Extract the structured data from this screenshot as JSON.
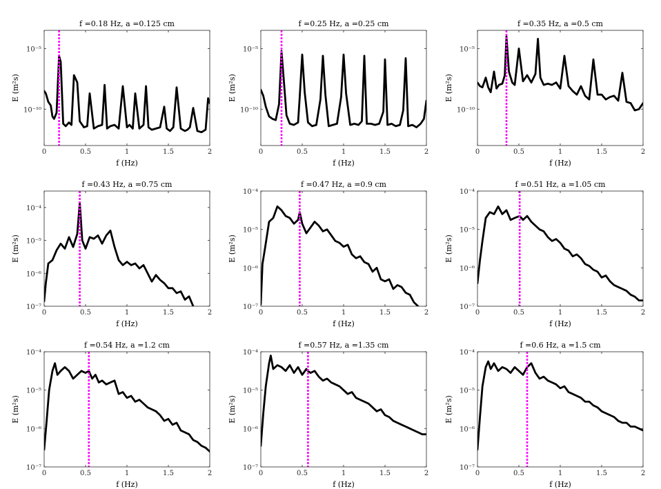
{
  "figure": {
    "description_color_line": "#000000",
    "marker_color": "#ff00ff"
  },
  "chart_data": [
    {
      "type": "line",
      "title": "f =0.18 Hz, a =0.125 cm",
      "xlabel": "f (Hz)",
      "ylabel": "E (m²s)",
      "xlim": [
        0,
        2
      ],
      "ylim_exp": [
        -13,
        -3.5
      ],
      "xticks": [
        "0",
        "0.5",
        "1",
        "1.5",
        "2"
      ],
      "yticks": [
        {
          "label": "10⁻⁵",
          "exp": -5
        },
        {
          "label": "10⁻¹⁰",
          "exp": -10
        }
      ],
      "marker_freq": 0.18,
      "x": [
        0,
        0.02,
        0.05,
        0.08,
        0.1,
        0.12,
        0.15,
        0.18,
        0.2,
        0.23,
        0.26,
        0.3,
        0.33,
        0.36,
        0.4,
        0.43,
        0.48,
        0.52,
        0.55,
        0.6,
        0.65,
        0.7,
        0.73,
        0.76,
        0.8,
        0.85,
        0.9,
        0.95,
        1.0,
        1.03,
        1.07,
        1.1,
        1.15,
        1.2,
        1.23,
        1.26,
        1.3,
        1.35,
        1.4,
        1.45,
        1.48,
        1.52,
        1.56,
        1.6,
        1.65,
        1.7,
        1.73,
        1.76,
        1.8,
        1.85,
        1.9,
        1.95,
        1.98,
        2.0
      ],
      "exp": [
        -8.5,
        -8.7,
        -9.4,
        -9.7,
        -10.6,
        -10.8,
        -10.3,
        -5.6,
        -6.1,
        -11.2,
        -11.4,
        -11.1,
        -11.3,
        -7.2,
        -7.8,
        -11.0,
        -11.5,
        -11.4,
        -8.7,
        -11.6,
        -11.4,
        -11.3,
        -8.0,
        -11.6,
        -11.4,
        -11.3,
        -11.6,
        -8.1,
        -11.5,
        -11.3,
        -11.6,
        -8.7,
        -11.6,
        -11.3,
        -8.1,
        -11.5,
        -11.7,
        -11.6,
        -11.5,
        -9.8,
        -11.6,
        -11.8,
        -11.5,
        -8.2,
        -11.6,
        -11.8,
        -11.7,
        -11.5,
        -9.9,
        -11.8,
        -11.9,
        -11.7,
        -9.1,
        -9.5
      ]
    },
    {
      "type": "line",
      "title": "f =0.25 Hz, a =0.25 cm",
      "xlabel": "f (Hz)",
      "ylabel": "E (m²s)",
      "xlim": [
        0,
        2
      ],
      "ylim_exp": [
        -13,
        -3.5
      ],
      "xticks": [
        "0",
        "0.5",
        "1",
        "1.5",
        "2"
      ],
      "yticks": [
        {
          "label": "10⁻⁵",
          "exp": -5
        },
        {
          "label": "10⁻¹⁰",
          "exp": -10
        }
      ],
      "marker_freq": 0.25,
      "x": [
        0,
        0.03,
        0.06,
        0.1,
        0.14,
        0.18,
        0.22,
        0.25,
        0.28,
        0.31,
        0.35,
        0.4,
        0.45,
        0.47,
        0.5,
        0.53,
        0.57,
        0.62,
        0.67,
        0.72,
        0.75,
        0.78,
        0.82,
        0.87,
        0.92,
        0.97,
        1.0,
        1.03,
        1.08,
        1.13,
        1.18,
        1.22,
        1.25,
        1.28,
        1.33,
        1.38,
        1.43,
        1.48,
        1.5,
        1.53,
        1.58,
        1.63,
        1.68,
        1.72,
        1.75,
        1.78,
        1.83,
        1.88,
        1.93,
        1.97,
        2.0
      ],
      "exp": [
        -8.4,
        -8.9,
        -9.8,
        -10.6,
        -10.8,
        -10.9,
        -9.6,
        -5.2,
        -7.8,
        -10.5,
        -11.2,
        -11.3,
        -11.1,
        -9.0,
        -5.5,
        -8.6,
        -11.1,
        -11.4,
        -11.3,
        -9.2,
        -5.6,
        -8.8,
        -11.4,
        -11.3,
        -11.2,
        -9.0,
        -5.5,
        -8.7,
        -11.3,
        -11.2,
        -11.3,
        -11.0,
        -5.6,
        -11.2,
        -11.2,
        -11.3,
        -11.2,
        -10.2,
        -5.9,
        -11.3,
        -11.2,
        -11.4,
        -11.3,
        -10.1,
        -5.8,
        -11.4,
        -11.3,
        -11.5,
        -11.2,
        -10.8,
        -9.3
      ]
    },
    {
      "type": "line",
      "title": "f =0.35 Hz, a =0.5 cm",
      "xlabel": "f (Hz)",
      "ylabel": "E (m²s)",
      "xlim": [
        0,
        2
      ],
      "ylim_exp": [
        -13,
        -3.5
      ],
      "xticks": [
        "0",
        "0.5",
        "1",
        "1.5",
        "2"
      ],
      "yticks": [
        {
          "label": "10⁻⁵",
          "exp": -5
        },
        {
          "label": "10⁻¹⁰",
          "exp": -10
        }
      ],
      "marker_freq": 0.35,
      "x": [
        0,
        0.03,
        0.06,
        0.1,
        0.13,
        0.16,
        0.2,
        0.23,
        0.26,
        0.3,
        0.33,
        0.35,
        0.38,
        0.42,
        0.45,
        0.5,
        0.55,
        0.6,
        0.65,
        0.7,
        0.73,
        0.76,
        0.8,
        0.85,
        0.9,
        0.95,
        1.0,
        1.05,
        1.1,
        1.15,
        1.2,
        1.25,
        1.3,
        1.35,
        1.4,
        1.45,
        1.5,
        1.55,
        1.6,
        1.65,
        1.7,
        1.75,
        1.8,
        1.85,
        1.9,
        1.95,
        2.0
      ],
      "exp": [
        -7.8,
        -8.1,
        -8.2,
        -7.4,
        -8.2,
        -8.6,
        -6.9,
        -8.3,
        -8.0,
        -7.9,
        -7.2,
        -4.0,
        -6.9,
        -7.8,
        -8.0,
        -5.0,
        -7.7,
        -7.2,
        -7.8,
        -7.1,
        -4.2,
        -7.4,
        -8.0,
        -7.9,
        -8.0,
        -7.8,
        -8.3,
        -5.6,
        -8.1,
        -8.5,
        -8.8,
        -8.1,
        -8.9,
        -9.2,
        -5.9,
        -8.8,
        -8.8,
        -9.2,
        -9.0,
        -8.9,
        -9.3,
        -7.0,
        -9.4,
        -9.5,
        -10.1,
        -10.0,
        -9.5
      ]
    },
    {
      "type": "line",
      "title": "f =0.43 Hz, a =0.75 cm",
      "xlabel": "f (Hz)",
      "ylabel": "E (m²s)",
      "xlim": [
        0,
        2
      ],
      "ylim_exp": [
        -7,
        -3.5
      ],
      "xticks": [
        "0",
        "0.5",
        "1",
        "1.5",
        "2"
      ],
      "yticks": [
        {
          "label": "10⁻⁴",
          "exp": -4
        },
        {
          "label": "10⁻⁵",
          "exp": -5
        },
        {
          "label": "10⁻⁶",
          "exp": -6
        },
        {
          "label": "10⁻⁷",
          "exp": -7
        }
      ],
      "marker_freq": 0.43,
      "x": [
        0,
        0.02,
        0.05,
        0.1,
        0.15,
        0.2,
        0.25,
        0.3,
        0.35,
        0.4,
        0.43,
        0.46,
        0.5,
        0.55,
        0.6,
        0.65,
        0.7,
        0.75,
        0.8,
        0.85,
        0.9,
        0.95,
        1.0,
        1.05,
        1.1,
        1.15,
        1.2,
        1.25,
        1.3,
        1.35,
        1.4,
        1.45,
        1.5,
        1.55,
        1.6,
        1.65,
        1.7,
        1.75,
        1.8
      ],
      "exp": [
        -6.85,
        -6.3,
        -5.7,
        -5.6,
        -5.3,
        -5.1,
        -5.25,
        -4.9,
        -5.2,
        -4.8,
        -3.85,
        -5.0,
        -5.25,
        -4.9,
        -4.95,
        -4.85,
        -5.1,
        -4.85,
        -4.7,
        -5.2,
        -5.6,
        -5.75,
        -5.65,
        -5.75,
        -5.7,
        -5.85,
        -5.75,
        -6.0,
        -6.25,
        -6.05,
        -6.2,
        -6.3,
        -6.45,
        -6.45,
        -6.6,
        -6.55,
        -6.8,
        -6.7,
        -7.0
      ]
    },
    {
      "type": "line",
      "title": "f =0.47 Hz, a =0.9 cm",
      "xlabel": "f (Hz)",
      "ylabel": "E (m²s)",
      "xlim": [
        0,
        2
      ],
      "ylim_exp": [
        -7,
        -4
      ],
      "xticks": [
        "0",
        "0.5",
        "1",
        "1.5",
        "2"
      ],
      "yticks": [
        {
          "label": "10⁻⁴",
          "exp": -4
        },
        {
          "label": "10⁻⁵",
          "exp": -5
        },
        {
          "label": "10⁻⁶",
          "exp": -6
        },
        {
          "label": "10⁻⁷",
          "exp": -7
        }
      ],
      "marker_freq": 0.47,
      "x": [
        0,
        0.02,
        0.05,
        0.1,
        0.15,
        0.2,
        0.25,
        0.3,
        0.35,
        0.4,
        0.45,
        0.47,
        0.5,
        0.55,
        0.6,
        0.65,
        0.7,
        0.75,
        0.8,
        0.85,
        0.9,
        0.95,
        1.0,
        1.05,
        1.1,
        1.15,
        1.2,
        1.25,
        1.3,
        1.35,
        1.4,
        1.45,
        1.5,
        1.55,
        1.6,
        1.65,
        1.7,
        1.75,
        1.8,
        1.85,
        1.9
      ],
      "exp": [
        -6.95,
        -5.9,
        -5.5,
        -4.8,
        -4.7,
        -4.4,
        -4.5,
        -4.65,
        -4.7,
        -4.85,
        -4.75,
        -4.55,
        -4.85,
        -5.1,
        -4.95,
        -4.8,
        -4.9,
        -5.05,
        -5.0,
        -5.15,
        -5.3,
        -5.35,
        -5.45,
        -5.4,
        -5.65,
        -5.75,
        -5.7,
        -5.85,
        -5.9,
        -6.1,
        -6.0,
        -6.3,
        -6.35,
        -6.3,
        -6.55,
        -6.45,
        -6.5,
        -6.65,
        -6.7,
        -6.9,
        -7.0
      ]
    },
    {
      "type": "line",
      "title": "f =0.51 Hz, a =1.05 cm",
      "xlabel": "f (Hz)",
      "ylabel": "E (m²s)",
      "xlim": [
        0,
        2
      ],
      "ylim_exp": [
        -7,
        -4
      ],
      "xticks": [
        "0",
        "0.5",
        "1",
        "1.5",
        "2"
      ],
      "yticks": [
        {
          "label": "10⁻⁴",
          "exp": -4
        },
        {
          "label": "10⁻⁵",
          "exp": -5
        },
        {
          "label": "10⁻⁶",
          "exp": -6
        },
        {
          "label": "10⁻⁷",
          "exp": -7
        }
      ],
      "marker_freq": 0.51,
      "x": [
        0,
        0.03,
        0.06,
        0.1,
        0.15,
        0.2,
        0.25,
        0.3,
        0.35,
        0.4,
        0.45,
        0.51,
        0.55,
        0.6,
        0.65,
        0.7,
        0.75,
        0.8,
        0.85,
        0.9,
        0.95,
        1.0,
        1.05,
        1.1,
        1.15,
        1.2,
        1.25,
        1.3,
        1.35,
        1.4,
        1.45,
        1.5,
        1.55,
        1.6,
        1.65,
        1.7,
        1.75,
        1.8,
        1.85,
        1.9,
        1.95,
        2.0
      ],
      "exp": [
        -6.4,
        -5.8,
        -5.3,
        -4.7,
        -4.55,
        -4.6,
        -4.4,
        -4.6,
        -4.5,
        -4.75,
        -4.7,
        -4.65,
        -4.75,
        -4.65,
        -4.8,
        -4.9,
        -5.0,
        -5.05,
        -5.2,
        -5.3,
        -5.25,
        -5.35,
        -5.5,
        -5.55,
        -5.7,
        -5.65,
        -5.75,
        -5.9,
        -5.95,
        -6.05,
        -6.1,
        -6.25,
        -6.2,
        -6.35,
        -6.45,
        -6.5,
        -6.55,
        -6.6,
        -6.7,
        -6.75,
        -6.85,
        -6.85
      ]
    },
    {
      "type": "line",
      "title": "f =0.54 Hz, a =1.2 cm",
      "xlabel": "f (Hz)",
      "ylabel": "E (m²s)",
      "xlim": [
        0,
        2
      ],
      "ylim_exp": [
        -7,
        -4
      ],
      "xticks": [
        "0",
        "0.5",
        "1",
        "1.5",
        "2"
      ],
      "yticks": [
        {
          "label": "10⁻⁴",
          "exp": -4
        },
        {
          "label": "10⁻⁵",
          "exp": -5
        },
        {
          "label": "10⁻⁶",
          "exp": -6
        },
        {
          "label": "10⁻⁷",
          "exp": -7
        }
      ],
      "marker_freq": 0.54,
      "x": [
        0,
        0.03,
        0.06,
        0.1,
        0.13,
        0.16,
        0.2,
        0.25,
        0.3,
        0.35,
        0.4,
        0.45,
        0.5,
        0.54,
        0.58,
        0.62,
        0.66,
        0.7,
        0.75,
        0.8,
        0.85,
        0.9,
        0.95,
        1.0,
        1.05,
        1.1,
        1.15,
        1.2,
        1.25,
        1.3,
        1.35,
        1.4,
        1.45,
        1.5,
        1.55,
        1.6,
        1.65,
        1.7,
        1.75,
        1.8,
        1.85,
        1.9,
        1.95,
        2.0
      ],
      "exp": [
        -6.55,
        -5.8,
        -5.0,
        -4.5,
        -4.3,
        -4.6,
        -4.5,
        -4.4,
        -4.5,
        -4.7,
        -4.6,
        -4.5,
        -4.55,
        -4.5,
        -4.7,
        -4.6,
        -4.8,
        -4.75,
        -4.85,
        -4.8,
        -4.75,
        -5.1,
        -5.05,
        -5.2,
        -5.15,
        -5.3,
        -5.25,
        -5.35,
        -5.45,
        -5.5,
        -5.55,
        -5.65,
        -5.8,
        -5.75,
        -5.9,
        -5.85,
        -6.05,
        -6.1,
        -6.15,
        -6.3,
        -6.35,
        -6.45,
        -6.5,
        -6.6
      ]
    },
    {
      "type": "line",
      "title": "f =0.57 Hz, a =1.35 cm",
      "xlabel": "f (Hz)",
      "ylabel": "E (m²s)",
      "xlim": [
        0,
        2
      ],
      "ylim_exp": [
        -7,
        -4
      ],
      "xticks": [
        "0",
        "0.5",
        "1",
        "1.5",
        "2"
      ],
      "yticks": [
        {
          "label": "10⁻⁴",
          "exp": -4
        },
        {
          "label": "10⁻⁵",
          "exp": -5
        },
        {
          "label": "10⁻⁶",
          "exp": -6
        },
        {
          "label": "10⁻⁷",
          "exp": -7
        }
      ],
      "marker_freq": 0.57,
      "x": [
        0,
        0.03,
        0.06,
        0.1,
        0.12,
        0.15,
        0.2,
        0.25,
        0.3,
        0.35,
        0.4,
        0.45,
        0.5,
        0.55,
        0.57,
        0.6,
        0.65,
        0.7,
        0.75,
        0.8,
        0.85,
        0.9,
        0.95,
        1.0,
        1.05,
        1.1,
        1.15,
        1.2,
        1.25,
        1.3,
        1.35,
        1.4,
        1.45,
        1.5,
        1.55,
        1.6,
        1.65,
        1.7,
        1.75,
        1.8,
        1.85,
        1.9,
        1.95,
        2.0
      ],
      "exp": [
        -6.45,
        -5.6,
        -4.9,
        -4.3,
        -4.1,
        -4.45,
        -4.35,
        -4.4,
        -4.5,
        -4.35,
        -4.55,
        -4.4,
        -4.6,
        -4.45,
        -4.5,
        -4.55,
        -4.5,
        -4.65,
        -4.75,
        -4.7,
        -4.8,
        -4.85,
        -4.9,
        -5.0,
        -5.1,
        -5.05,
        -5.2,
        -5.25,
        -5.3,
        -5.35,
        -5.45,
        -5.55,
        -5.5,
        -5.65,
        -5.7,
        -5.8,
        -5.85,
        -5.9,
        -5.95,
        -6.0,
        -6.05,
        -6.1,
        -6.15,
        -6.15
      ]
    },
    {
      "type": "line",
      "title": "f =0.6 Hz, a =1.5 cm",
      "xlabel": "f (Hz)",
      "ylabel": "E (m²s)",
      "xlim": [
        0,
        2
      ],
      "ylim_exp": [
        -7,
        -4
      ],
      "xticks": [
        "0",
        "0.5",
        "1",
        "1.5",
        "2"
      ],
      "yticks": [
        {
          "label": "10⁻⁴",
          "exp": -4
        },
        {
          "label": "10⁻⁵",
          "exp": -5
        },
        {
          "label": "10⁻⁶",
          "exp": -6
        },
        {
          "label": "10⁻⁷",
          "exp": -7
        }
      ],
      "marker_freq": 0.6,
      "x": [
        0,
        0.03,
        0.06,
        0.1,
        0.13,
        0.16,
        0.2,
        0.25,
        0.3,
        0.35,
        0.4,
        0.45,
        0.5,
        0.55,
        0.6,
        0.65,
        0.7,
        0.75,
        0.8,
        0.85,
        0.9,
        0.95,
        1.0,
        1.05,
        1.1,
        1.15,
        1.2,
        1.25,
        1.3,
        1.35,
        1.4,
        1.45,
        1.5,
        1.55,
        1.6,
        1.65,
        1.7,
        1.75,
        1.8,
        1.85,
        1.9,
        1.95,
        2.0
      ],
      "exp": [
        -6.55,
        -5.7,
        -4.9,
        -4.4,
        -4.25,
        -4.45,
        -4.3,
        -4.5,
        -4.4,
        -4.45,
        -4.55,
        -4.4,
        -4.5,
        -4.6,
        -4.4,
        -4.3,
        -4.55,
        -4.7,
        -4.65,
        -4.75,
        -4.8,
        -4.85,
        -4.95,
        -4.9,
        -5.05,
        -5.1,
        -5.15,
        -5.2,
        -5.3,
        -5.3,
        -5.4,
        -5.45,
        -5.55,
        -5.6,
        -5.65,
        -5.7,
        -5.8,
        -5.85,
        -5.85,
        -5.95,
        -5.95,
        -6.0,
        -6.05
      ]
    }
  ]
}
